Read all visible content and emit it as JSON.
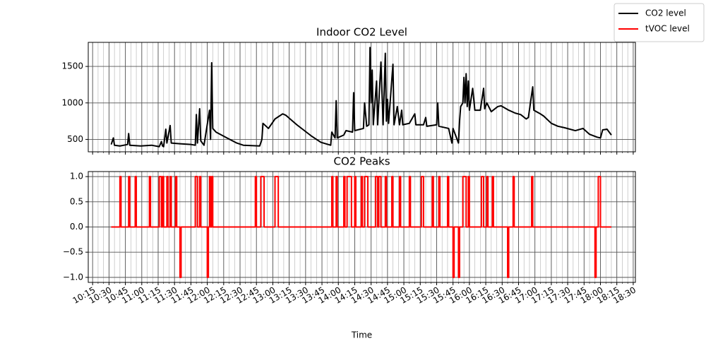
{
  "chart_data": [
    {
      "type": "line",
      "title": "Indoor CO2 Level",
      "x": [
        "10:32",
        "10:34",
        "10:35",
        "10:40",
        "10:47",
        "10:48",
        "10:49",
        "10:59",
        "11:09",
        "11:16",
        "11:18",
        "11:19",
        "11:20",
        "11:22",
        "11:23",
        "11:26",
        "11:27",
        "11:35",
        "11:45",
        "11:49",
        "11:50",
        "11:51",
        "11:53",
        "11:54",
        "11:57",
        "12:02",
        "12:03",
        "12:04",
        "12:05",
        "12:08",
        "12:18",
        "12:27",
        "12:33",
        "12:48",
        "12:50",
        "12:51",
        "12:56",
        "13:02",
        "13:09",
        "13:12",
        "13:22",
        "13:35",
        "13:44",
        "13:53",
        "13:54",
        "13:57",
        "13:58",
        "13:59",
        "14:05",
        "14:07",
        "14:13",
        "14:14",
        "14:15",
        "14:23",
        "14:24",
        "14:26",
        "14:28",
        "14:29",
        "14:30",
        "14:31",
        "14:32",
        "14:35",
        "14:36",
        "14:39",
        "14:41",
        "14:43",
        "14:44",
        "14:45",
        "14:46",
        "14:50",
        "14:51",
        "14:54",
        "14:56",
        "14:58",
        "14:59",
        "15:05",
        "15:10",
        "15:11",
        "15:18",
        "15:20",
        "15:21",
        "15:30",
        "15:31",
        "15:32",
        "15:41",
        "15:44",
        "15:45",
        "15:50",
        "15:51",
        "15:52",
        "15:54",
        "15:55",
        "15:56",
        "15:57",
        "15:58",
        "15:59",
        "16:00",
        "16:03",
        "16:05",
        "16:10",
        "16:13",
        "16:14",
        "16:16",
        "16:20",
        "16:26",
        "16:29",
        "16:36",
        "16:42",
        "16:47",
        "16:52",
        "16:54",
        "16:58",
        "16:59",
        "17:05",
        "17:08",
        "17:15",
        "17:21",
        "17:27",
        "17:37",
        "17:44",
        "17:50",
        "17:57",
        "18:00",
        "18:02",
        "18:06",
        "18:10"
      ],
      "series": [
        {
          "name": "CO2 level",
          "color": "#000000",
          "values": [
            430,
            520,
            420,
            410,
            430,
            580,
            420,
            410,
            420,
            400,
            470,
            410,
            400,
            640,
            450,
            690,
            450,
            440,
            430,
            420,
            840,
            450,
            920,
            480,
            420,
            900,
            500,
            1550,
            650,
            600,
            520,
            450,
            420,
            410,
            500,
            720,
            650,
            780,
            850,
            830,
            700,
            550,
            460,
            420,
            600,
            520,
            1030,
            520,
            560,
            620,
            600,
            1140,
            620,
            650,
            1000,
            680,
            700,
            1760,
            1000,
            1450,
            700,
            1300,
            700,
            1560,
            700,
            1680,
            750,
            1050,
            720,
            1530,
            700,
            950,
            700,
            900,
            700,
            720,
            850,
            700,
            700,
            800,
            680,
            700,
            1000,
            680,
            650,
            450,
            650,
            450,
            750,
            950,
            1000,
            1350,
            1000,
            1400,
            950,
            1300,
            900,
            1200,
            900,
            900,
            1200,
            920,
            1000,
            880,
            950,
            960,
            900,
            860,
            840,
            780,
            800,
            1220,
            900,
            850,
            820,
            720,
            680,
            660,
            620,
            650,
            570,
            530,
            520,
            630,
            640,
            560
          ]
        }
      ],
      "ylim": [
        330,
        1830
      ],
      "yticks": [
        500,
        1000,
        1500
      ],
      "grid": true
    },
    {
      "type": "line",
      "title": "CO2 Peaks",
      "xlabel": "Time",
      "x": [
        "10:32",
        "10:40",
        "10:40",
        "10:41",
        "10:41",
        "10:48",
        "10:48",
        "10:49",
        "10:49",
        "10:54",
        "10:54",
        "10:55",
        "10:55",
        "11:07",
        "11:07",
        "11:08",
        "11:08",
        "11:16",
        "11:16",
        "11:18",
        "11:18",
        "11:19",
        "11:19",
        "11:20",
        "11:20",
        "11:23",
        "11:23",
        "11:24",
        "11:24",
        "11:26",
        "11:26",
        "11:27",
        "11:27",
        "11:31",
        "11:31",
        "11:32",
        "11:32",
        "11:35",
        "11:35",
        "11:36",
        "11:36",
        "11:49",
        "11:49",
        "11:51",
        "11:51",
        "11:53",
        "11:53",
        "11:54",
        "11:54",
        "12:00",
        "12:00",
        "12:01",
        "12:01",
        "12:02",
        "12:02",
        "12:03",
        "12:03",
        "12:04",
        "12:04",
        "12:05",
        "12:05",
        "12:44",
        "12:44",
        "12:45",
        "12:45",
        "12:49",
        "12:49",
        "12:52",
        "12:52",
        "13:02",
        "13:02",
        "13:05",
        "13:05",
        "13:54",
        "13:54",
        "13:55",
        "13:55",
        "13:58",
        "13:58",
        "13:59",
        "13:59",
        "14:05",
        "14:05",
        "14:06",
        "14:06",
        "14:08",
        "14:08",
        "14:12",
        "14:12",
        "14:15",
        "14:15",
        "14:16",
        "14:16",
        "14:21",
        "14:21",
        "14:22",
        "14:22",
        "14:24",
        "14:24",
        "14:27",
        "14:27",
        "14:34",
        "14:34",
        "14:36",
        "14:36",
        "14:37",
        "14:37",
        "14:39",
        "14:39",
        "14:43",
        "14:43",
        "14:44",
        "14:44",
        "14:49",
        "14:49",
        "14:50",
        "14:50",
        "14:56",
        "14:56",
        "14:57",
        "14:57",
        "15:05",
        "15:05",
        "15:06",
        "15:06",
        "15:16",
        "15:16",
        "15:18",
        "15:18",
        "15:26",
        "15:26",
        "15:27",
        "15:27",
        "15:32",
        "15:32",
        "15:33",
        "15:33",
        "15:40",
        "15:40",
        "15:41",
        "15:41",
        "15:45",
        "15:45",
        "15:46",
        "15:46",
        "15:50",
        "15:50",
        "15:51",
        "15:51",
        "15:54",
        "15:54",
        "15:57",
        "15:57",
        "15:59",
        "15:59",
        "16:00",
        "16:00",
        "16:11",
        "16:11",
        "16:13",
        "16:13",
        "16:16",
        "16:16",
        "16:17",
        "16:17",
        "16:21",
        "16:21",
        "16:22",
        "16:22",
        "16:35",
        "16:35",
        "16:36",
        "16:36",
        "16:40",
        "16:40",
        "16:41",
        "16:41",
        "16:57",
        "16:57",
        "16:58",
        "16:58",
        "17:55",
        "17:55",
        "17:56",
        "17:56",
        "17:58",
        "17:58",
        "18:00",
        "18:00",
        "18:10"
      ],
      "series": [
        {
          "name": "tVOC level",
          "color": "#ff0000",
          "values": [
            0,
            0,
            1,
            1,
            0,
            0,
            1,
            1,
            0,
            0,
            1,
            1,
            0,
            0,
            1,
            1,
            0,
            0,
            1,
            1,
            0,
            0,
            1,
            1,
            0,
            0,
            1,
            1,
            0,
            0,
            1,
            1,
            0,
            0,
            1,
            1,
            0,
            0,
            -1,
            -1,
            0,
            0,
            1,
            1,
            0,
            0,
            1,
            1,
            0,
            0,
            -1,
            -1,
            0,
            0,
            1,
            1,
            0,
            0,
            1,
            1,
            0,
            0,
            1,
            1,
            0,
            0,
            1,
            1,
            0,
            0,
            1,
            1,
            0,
            0,
            1,
            1,
            0,
            0,
            1,
            1,
            0,
            0,
            1,
            1,
            0,
            0,
            1,
            1,
            0,
            0,
            1,
            1,
            0,
            0,
            1,
            1,
            0,
            0,
            1,
            1,
            0,
            0,
            1,
            1,
            0,
            0,
            1,
            1,
            0,
            0,
            1,
            1,
            0,
            0,
            1,
            1,
            0,
            0,
            1,
            1,
            0,
            0,
            1,
            1,
            0,
            0,
            1,
            1,
            0,
            0,
            1,
            1,
            0,
            0,
            1,
            1,
            0,
            0,
            1,
            1,
            0,
            0,
            -1,
            -1,
            0,
            0,
            -1,
            -1,
            0,
            0,
            1,
            1,
            0,
            0,
            1,
            1,
            0,
            0,
            1,
            1,
            0,
            0,
            1,
            1,
            0,
            0,
            1,
            1,
            0,
            0,
            -1,
            -1,
            0,
            0,
            1,
            1,
            0,
            0,
            1,
            1,
            0,
            0,
            -1,
            -1,
            0,
            0,
            1,
            1,
            0,
            0
          ]
        }
      ],
      "ylim": [
        -1.1,
        1.1
      ],
      "yticks": [
        {
          "value": -1,
          "label": "−1.0"
        },
        {
          "value": -0.5,
          "label": "−0.5"
        },
        {
          "value": 0,
          "label": "0.0"
        },
        0.5,
        {
          "value": 1,
          "label": "1.0"
        }
      ],
      "xlim": [
        "10:11",
        "18:32"
      ],
      "xticks": [
        "10:15",
        "10:30",
        "10:45",
        "11:00",
        "11:15",
        "11:30",
        "11:45",
        "12:00",
        "12:15",
        "12:30",
        "12:45",
        "13:00",
        "13:15",
        "13:30",
        "13:45",
        "14:00",
        "14:15",
        "14:30",
        "14:45",
        "15:00",
        "15:15",
        "15:30",
        "15:45",
        "16:00",
        "16:15",
        "16:30",
        "16:45",
        "17:00",
        "17:15",
        "17:30",
        "17:45",
        "18:00",
        "18:15",
        "18:30"
      ],
      "grid": true,
      "minor_grid": true,
      "legend": "upper right"
    }
  ]
}
